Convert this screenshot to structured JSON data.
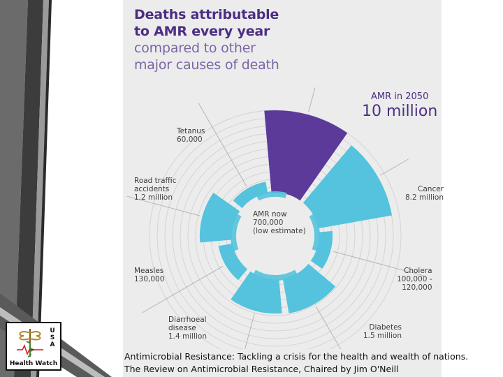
{
  "title": {
    "line1": "Deaths attributable",
    "line2": "to AMR every year",
    "line3": "compared to other",
    "line4": "major causes of death"
  },
  "chart_data": {
    "type": "radial-bar",
    "unit": "deaths per year",
    "items": [
      {
        "name": "AMR in 2050",
        "label": "10 million",
        "value": 10000000,
        "angle_deg": 15,
        "color": "#5b3a9a"
      },
      {
        "name": "Cancer",
        "label": "8.2 million",
        "value": 8200000,
        "angle_deg": 60,
        "color": "#55c3dd"
      },
      {
        "name": "Cholera",
        "label": "100,000 120,000",
        "value": 120000,
        "angle_deg": 105,
        "color": "#55c3dd"
      },
      {
        "name": "Diabetes",
        "label": "1.5 million",
        "value": 1500000,
        "angle_deg": 150,
        "color": "#55c3dd"
      },
      {
        "name": "Diarrhoeal disease",
        "label": "1.4 million",
        "value": 1400000,
        "angle_deg": 195,
        "color": "#55c3dd"
      },
      {
        "name": "Measles",
        "label": "130,000",
        "value": 130000,
        "angle_deg": 240,
        "color": "#55c3dd"
      },
      {
        "name": "Road traffic accidents",
        "label": "1.2 million",
        "value": 1200000,
        "angle_deg": 285,
        "color": "#55c3dd"
      },
      {
        "name": "Tetanus",
        "label": "60,000",
        "value": 60000,
        "angle_deg": 330,
        "color": "#55c3dd"
      },
      {
        "name": "AMR now",
        "label": "700,000 (low estimate)",
        "value": 700000,
        "color": "#55c3dd"
      }
    ]
  },
  "labels": {
    "amr2050_name": "AMR in 2050",
    "amr2050_value": "10 million",
    "tetanus_name": "Tetanus",
    "tetanus_value": "60,000",
    "road_name_1": "Road traffic",
    "road_name_2": "accidents",
    "road_value": "1.2 million",
    "cancer_name": "Cancer",
    "cancer_value": "8.2 million",
    "amrnow_name": "AMR now",
    "amrnow_value": "700,000",
    "amrnow_note": "(low estimate)",
    "measles_name": "Measles",
    "measles_value": "130,000",
    "cholera_name": "Cholera",
    "cholera_value_1": "100,000 -",
    "cholera_value_2": "120,000",
    "diarrhoeal_name_1": "Diarrhoeal",
    "diarrhoeal_name_2": "disease",
    "diarrhoeal_value": "1.4 million",
    "diabetes_name": "Diabetes",
    "diabetes_value": "1.5 million"
  },
  "logo": {
    "letters": [
      "U",
      "S",
      "A"
    ],
    "caption": "Health Watch"
  },
  "citation": "Antimicrobial Resistance: Tackling a crisis for the health and wealth of nations. The Review on Antimicrobial Resistance, Chaired by Jim O'Neill",
  "colors": {
    "accent_purple": "#4b2e83",
    "accent_cyan": "#55c3dd"
  }
}
